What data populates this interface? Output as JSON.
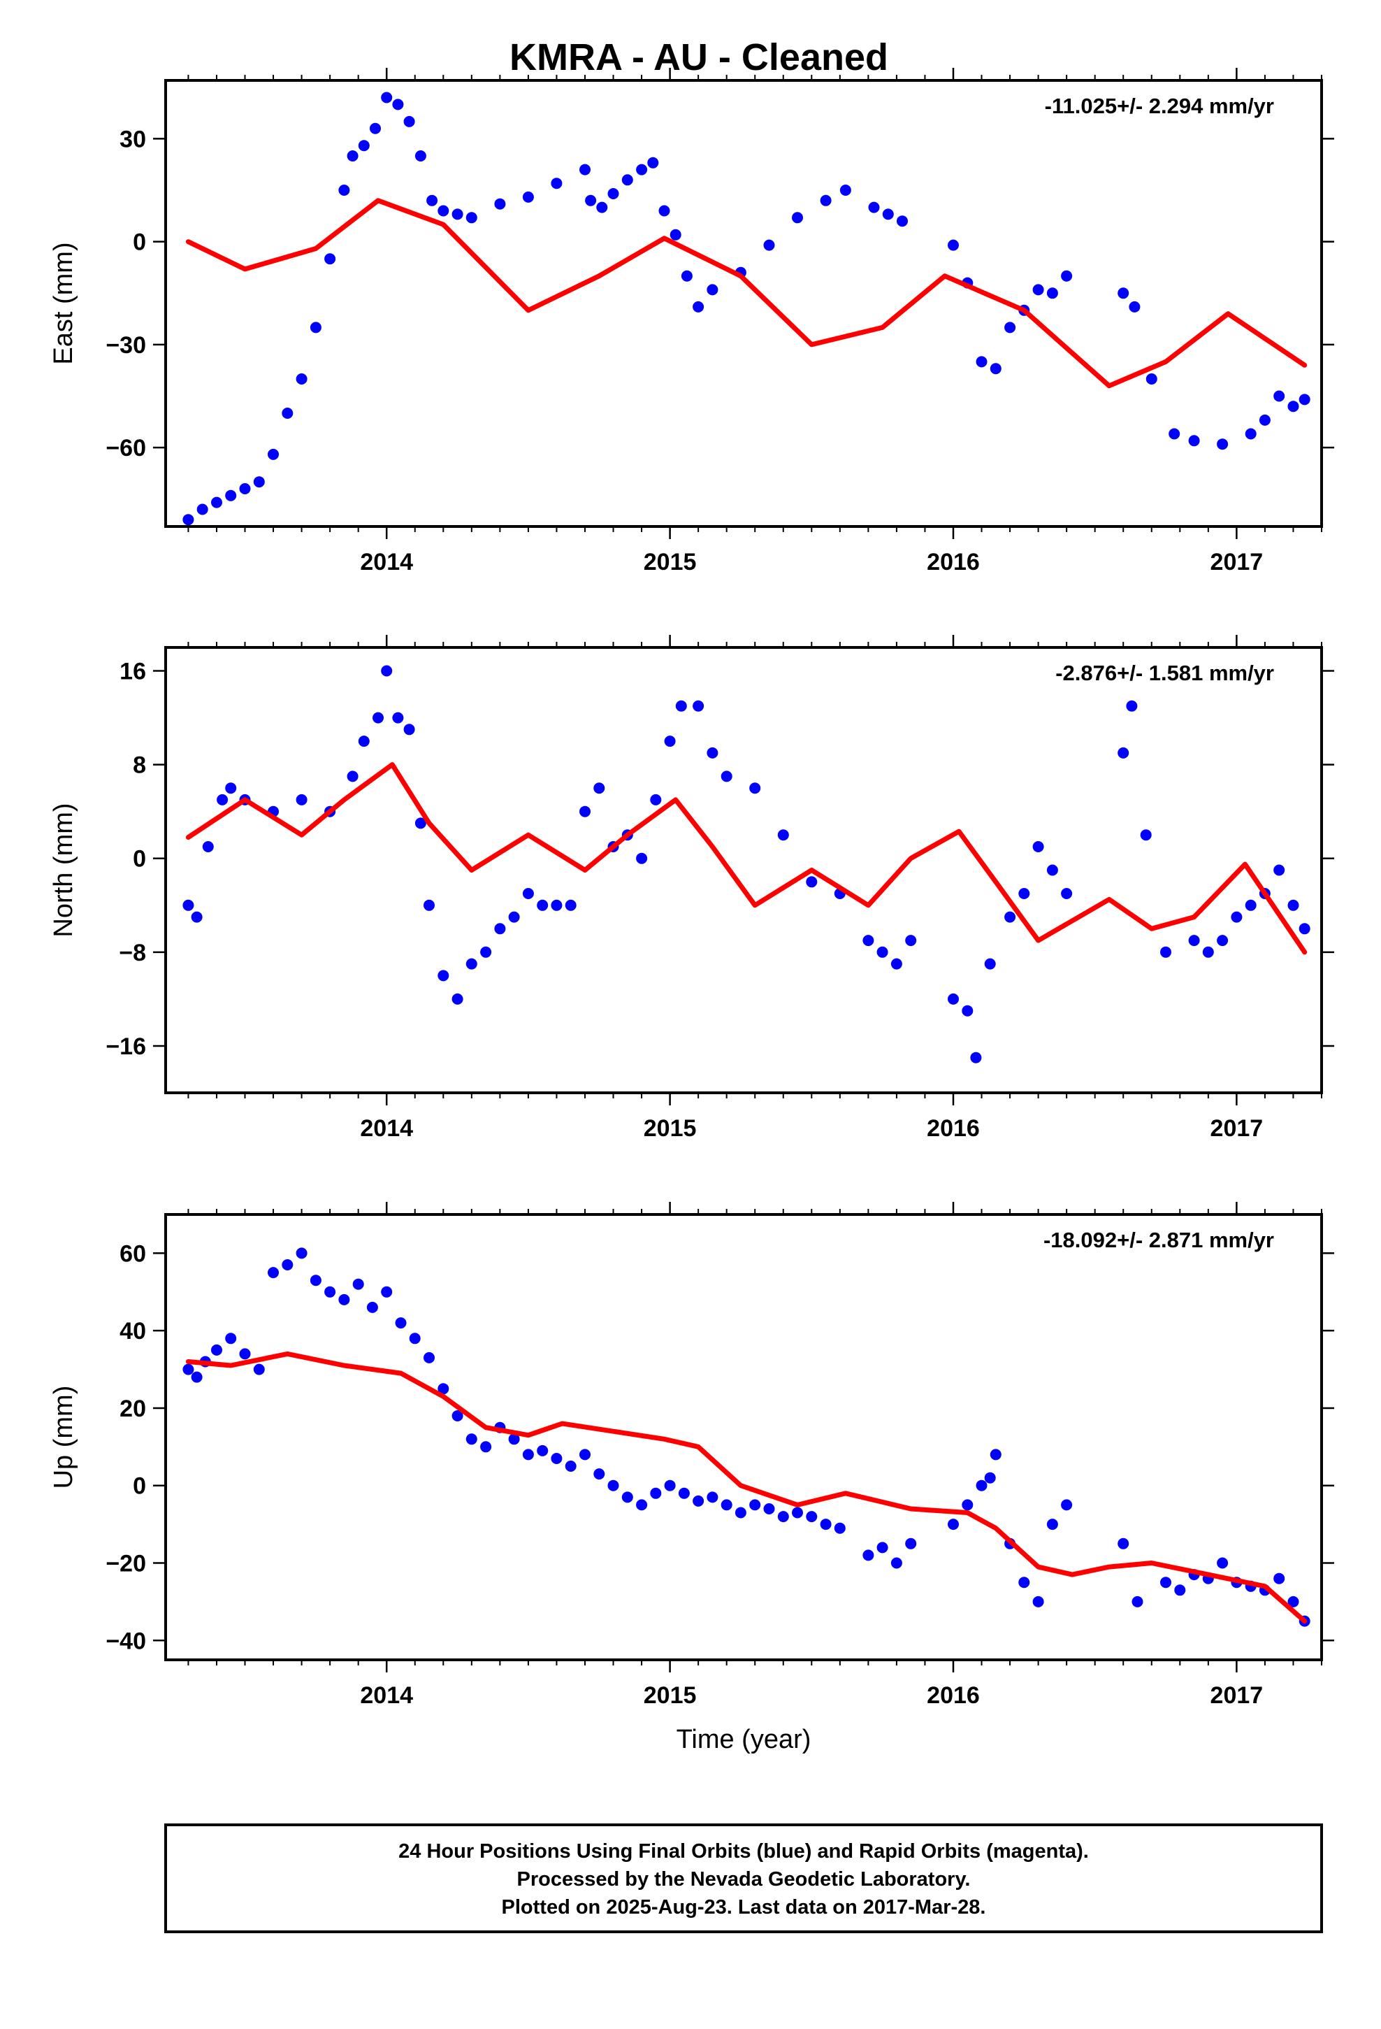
{
  "title": "KMRA  - AU - Cleaned",
  "colors": {
    "final_orbits": "#0000ff",
    "model": "#ff0000",
    "frame": "#000000"
  },
  "footer": {
    "line1": "24 Hour Positions Using Final Orbits (blue) and Rapid Orbits (magenta).",
    "line2": "Processed by the Nevada Geodetic Laboratory.",
    "line3": "Plotted on 2025-Aug-23. Last data on 2017-Mar-28."
  },
  "chart_data": [
    {
      "type": "scatter",
      "ylabel": "East (mm)",
      "rate_label": "-11.025+/- 2.294 mm/yr",
      "xlim": [
        2013.22,
        2017.3
      ],
      "ylim": [
        -83,
        47
      ],
      "xticks": [
        2014,
        2015,
        2016,
        2017
      ],
      "xtick_labels": [
        "2014",
        "2015",
        "2016",
        "2017"
      ],
      "yticks": [
        -60,
        -30,
        0,
        30
      ],
      "ytick_labels": [
        "−60",
        "−30",
        "0",
        "30"
      ],
      "series": [
        {
          "marker": "dot",
          "x": [
            2013.3,
            2013.35,
            2013.4,
            2013.45,
            2013.5,
            2013.55,
            2013.6,
            2013.65,
            2013.7,
            2013.75,
            2013.8,
            2013.85,
            2013.88,
            2013.92,
            2013.96,
            2014.0,
            2014.04,
            2014.08,
            2014.12,
            2014.16,
            2014.2,
            2014.25,
            2014.3,
            2014.4,
            2014.5,
            2014.6,
            2014.7,
            2014.72,
            2014.76,
            2014.8,
            2014.85,
            2014.9,
            2014.94,
            2014.98,
            2015.02,
            2015.06,
            2015.1,
            2015.15,
            2015.25,
            2015.35,
            2015.45,
            2015.55,
            2015.62,
            2015.72,
            2015.77,
            2015.82,
            2016.0,
            2016.05,
            2016.1,
            2016.15,
            2016.2,
            2016.25,
            2016.3,
            2016.35,
            2016.4,
            2016.6,
            2016.64,
            2016.7,
            2016.78,
            2016.85,
            2016.95,
            2017.05,
            2017.1,
            2017.15,
            2017.2,
            2017.24
          ],
          "y": [
            -81,
            -78,
            -76,
            -74,
            -72,
            -70,
            -62,
            -50,
            -40,
            -25,
            -5,
            15,
            25,
            28,
            33,
            42,
            40,
            35,
            25,
            12,
            9,
            8,
            7,
            11,
            13,
            17,
            21,
            12,
            10,
            14,
            18,
            21,
            23,
            9,
            2,
            -10,
            -19,
            -14,
            -9,
            -1,
            7,
            12,
            15,
            10,
            8,
            6,
            -1,
            -12,
            -35,
            -37,
            -25,
            -20,
            -14,
            -15,
            -10,
            -15,
            -19,
            -40,
            -56,
            -58,
            -59,
            -56,
            -52,
            -45,
            -48,
            -46
          ]
        },
        {
          "type": "line",
          "x": [
            2013.3,
            2013.5,
            2013.75,
            2013.97,
            2014.2,
            2014.5,
            2014.75,
            2014.98,
            2015.25,
            2015.5,
            2015.75,
            2015.97,
            2016.25,
            2016.55,
            2016.75,
            2016.97,
            2017.24
          ],
          "y": [
            0,
            -8,
            -2,
            12,
            5,
            -20,
            -10,
            1,
            -10,
            -30,
            -25,
            -10,
            -20,
            -42,
            -35,
            -21,
            -36
          ]
        }
      ]
    },
    {
      "type": "scatter",
      "ylabel": "North (mm)",
      "rate_label": "-2.876+/- 1.581 mm/yr",
      "xlim": [
        2013.22,
        2017.3
      ],
      "ylim": [
        -20,
        18
      ],
      "xticks": [
        2014,
        2015,
        2016,
        2017
      ],
      "xtick_labels": [
        "2014",
        "2015",
        "2016",
        "2017"
      ],
      "yticks": [
        -16,
        -8,
        0,
        8,
        16
      ],
      "ytick_labels": [
        "−16",
        "−8",
        "0",
        "8",
        "16"
      ],
      "series": [
        {
          "marker": "dot",
          "x": [
            2013.3,
            2013.33,
            2013.37,
            2013.42,
            2013.45,
            2013.5,
            2013.6,
            2013.7,
            2013.8,
            2013.88,
            2013.92,
            2013.97,
            2014.0,
            2014.04,
            2014.08,
            2014.12,
            2014.15,
            2014.2,
            2014.25,
            2014.3,
            2014.35,
            2014.4,
            2014.45,
            2014.5,
            2014.55,
            2014.6,
            2014.65,
            2014.7,
            2014.75,
            2014.8,
            2014.85,
            2014.9,
            2014.95,
            2015.0,
            2015.04,
            2015.1,
            2015.15,
            2015.2,
            2015.3,
            2015.4,
            2015.5,
            2015.6,
            2015.7,
            2015.75,
            2015.8,
            2015.85,
            2016.0,
            2016.05,
            2016.08,
            2016.13,
            2016.2,
            2016.25,
            2016.3,
            2016.35,
            2016.4,
            2016.6,
            2016.63,
            2016.68,
            2016.75,
            2016.85,
            2016.9,
            2016.95,
            2017.0,
            2017.05,
            2017.1,
            2017.15,
            2017.2,
            2017.24
          ],
          "y": [
            -4,
            -5,
            1,
            5,
            6,
            5,
            4,
            5,
            4,
            7,
            10,
            12,
            16,
            12,
            11,
            3,
            -4,
            -10,
            -12,
            -9,
            -8,
            -6,
            -5,
            -3,
            -4,
            -4,
            -4,
            4,
            6,
            1,
            2,
            0,
            5,
            10,
            13,
            13,
            9,
            7,
            6,
            2,
            -2,
            -3,
            -7,
            -8,
            -9,
            -7,
            -12,
            -13,
            -17,
            -9,
            -5,
            -3,
            1,
            -1,
            -3,
            9,
            13,
            2,
            -8,
            -7,
            -8,
            -7,
            -5,
            -4,
            -3,
            -1,
            -4,
            -6
          ]
        },
        {
          "type": "line",
          "x": [
            2013.3,
            2013.5,
            2013.7,
            2013.85,
            2014.02,
            2014.15,
            2014.3,
            2014.5,
            2014.7,
            2014.85,
            2015.02,
            2015.15,
            2015.3,
            2015.5,
            2015.7,
            2015.85,
            2016.02,
            2016.15,
            2016.3,
            2016.55,
            2016.7,
            2016.85,
            2017.03,
            2017.24
          ],
          "y": [
            1.8,
            5,
            2,
            5,
            8,
            3,
            -1,
            2,
            -1,
            2,
            5,
            1,
            -4,
            -1,
            -4,
            0,
            2.3,
            -2,
            -7,
            -3.5,
            -6,
            -5,
            -0.5,
            -8
          ]
        }
      ]
    },
    {
      "type": "scatter",
      "ylabel": "Up (mm)",
      "xlabel": "Time (year)",
      "rate_label": "-18.092+/- 2.871 mm/yr",
      "xlim": [
        2013.22,
        2017.3
      ],
      "ylim": [
        -45,
        70
      ],
      "xticks": [
        2014,
        2015,
        2016,
        2017
      ],
      "xtick_labels": [
        "2014",
        "2015",
        "2016",
        "2017"
      ],
      "yticks": [
        -40,
        -20,
        0,
        20,
        40,
        60
      ],
      "ytick_labels": [
        "−40",
        "−20",
        "0",
        "20",
        "40",
        "60"
      ],
      "series": [
        {
          "marker": "dot",
          "x": [
            2013.3,
            2013.33,
            2013.36,
            2013.4,
            2013.45,
            2013.5,
            2013.55,
            2013.6,
            2013.65,
            2013.7,
            2013.75,
            2013.8,
            2013.85,
            2013.9,
            2013.95,
            2014.0,
            2014.05,
            2014.1,
            2014.15,
            2014.2,
            2014.25,
            2014.3,
            2014.35,
            2014.4,
            2014.45,
            2014.5,
            2014.55,
            2014.6,
            2014.65,
            2014.7,
            2014.75,
            2014.8,
            2014.85,
            2014.9,
            2014.95,
            2015.0,
            2015.05,
            2015.1,
            2015.15,
            2015.2,
            2015.25,
            2015.3,
            2015.35,
            2015.4,
            2015.45,
            2015.5,
            2015.55,
            2015.6,
            2015.7,
            2015.75,
            2015.8,
            2015.85,
            2016.0,
            2016.05,
            2016.1,
            2016.13,
            2016.15,
            2016.2,
            2016.25,
            2016.3,
            2016.35,
            2016.4,
            2016.6,
            2016.65,
            2016.75,
            2016.8,
            2016.85,
            2016.9,
            2016.95,
            2017.0,
            2017.05,
            2017.1,
            2017.15,
            2017.2,
            2017.24
          ],
          "y": [
            30,
            28,
            32,
            35,
            38,
            34,
            30,
            55,
            57,
            60,
            53,
            50,
            48,
            52,
            46,
            50,
            42,
            38,
            33,
            25,
            18,
            12,
            10,
            15,
            12,
            8,
            9,
            7,
            5,
            8,
            3,
            0,
            -3,
            -5,
            -2,
            0,
            -2,
            -4,
            -3,
            -5,
            -7,
            -5,
            -6,
            -8,
            -7,
            -8,
            -10,
            -11,
            -18,
            -16,
            -20,
            -15,
            -10,
            -5,
            0,
            2,
            8,
            -15,
            -25,
            -30,
            -10,
            -5,
            -15,
            -30,
            -25,
            -27,
            -23,
            -24,
            -20,
            -25,
            -26,
            -27,
            -24,
            -30,
            -35
          ]
        },
        {
          "type": "line",
          "x": [
            2013.3,
            2013.45,
            2013.65,
            2013.85,
            2014.05,
            2014.2,
            2014.35,
            2014.5,
            2014.62,
            2014.8,
            2014.98,
            2015.1,
            2015.25,
            2015.45,
            2015.62,
            2015.85,
            2016.05,
            2016.15,
            2016.3,
            2016.42,
            2016.55,
            2016.7,
            2016.9,
            2017.1,
            2017.24
          ],
          "y": [
            32,
            31,
            34,
            31,
            29,
            23,
            15,
            13,
            16,
            14,
            12,
            10,
            0,
            -5,
            -2,
            -6,
            -7,
            -11,
            -21,
            -23,
            -21,
            -20,
            -23,
            -26,
            -35
          ]
        }
      ]
    }
  ]
}
